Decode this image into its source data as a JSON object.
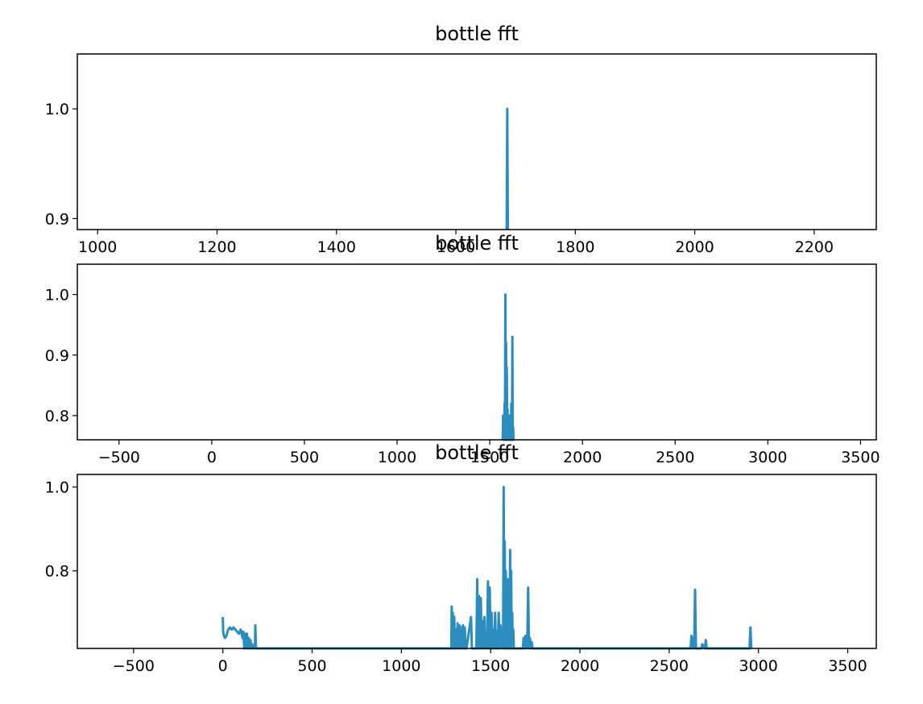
{
  "chart_data": [
    {
      "type": "line",
      "title": "bottle fft",
      "xlabel": "",
      "ylabel": "",
      "xlim": [
        966,
        2304
      ],
      "ylim": [
        0.89,
        1.05
      ],
      "xticks": [
        "1000",
        "1200",
        "1400",
        "1600",
        "1800",
        "2000",
        "2200"
      ],
      "yticks": [
        "0.9",
        "1.0"
      ],
      "grid": false,
      "color": "#2b8cbe",
      "series": [
        {
          "x": [
            1685,
            1686,
            1687
          ],
          "y": [
            0.89,
            1.0,
            0.89
          ]
        }
      ]
    },
    {
      "type": "line",
      "title": "bottle fft",
      "xlabel": "",
      "ylabel": "",
      "xlim": [
        -725,
        3585
      ],
      "ylim": [
        0.76,
        1.05
      ],
      "xticks": [
        "−500",
        "0",
        "500",
        "1000",
        "1500",
        "2000",
        "2500",
        "3000",
        "3500"
      ],
      "yticks": [
        "0.8",
        "0.9",
        "1.0"
      ],
      "grid": false,
      "color": "#2b8cbe",
      "series": [
        {
          "x": [
            1570,
            1572,
            1574,
            1576,
            1578,
            1580,
            1582,
            1584,
            1586,
            1588,
            1590,
            1592,
            1594,
            1596,
            1598,
            1600,
            1602,
            1604,
            1606,
            1608,
            1610,
            1612,
            1614,
            1616,
            1618,
            1620,
            1622,
            1624,
            1626,
            1628,
            1630,
            1632
          ],
          "y": [
            0.76,
            0.8,
            0.76,
            0.8,
            0.76,
            0.82,
            0.76,
            1.0,
            0.76,
            0.92,
            0.76,
            0.88,
            0.76,
            0.81,
            0.76,
            0.8,
            0.76,
            0.78,
            0.76,
            0.8,
            0.76,
            0.76,
            0.76,
            0.82,
            0.76,
            0.76,
            0.93,
            0.76,
            0.78,
            0.76,
            0.76,
            0.76
          ]
        }
      ]
    },
    {
      "type": "line",
      "title": "bottle fft",
      "xlabel": "",
      "ylabel": "",
      "xlim": [
        -815,
        3660
      ],
      "ylim": [
        0.615,
        1.03
      ],
      "xticks": [
        "−500",
        "0",
        "500",
        "1000",
        "1500",
        "2000",
        "2500",
        "3000",
        "3500"
      ],
      "yticks": [
        "0.8",
        "1.0"
      ],
      "grid": false,
      "color": "#2b8cbe",
      "series": [
        {
          "x": [
            0,
            2,
            6,
            12,
            20,
            30,
            40,
            50,
            60,
            70,
            80,
            90,
            100,
            110,
            115,
            120,
            125,
            130,
            135,
            140,
            145,
            150,
            155,
            160,
            165,
            170,
            175,
            180,
            182,
            186,
            190,
            1280,
            1282,
            1284,
            1288,
            1292,
            1296,
            1300,
            1305,
            1310,
            1315,
            1320,
            1325,
            1330,
            1335,
            1340,
            1345,
            1350,
            1355,
            1360,
            1365,
            1390,
            1395,
            1420,
            1425,
            1430,
            1435,
            1440,
            1445,
            1450,
            1455,
            1460,
            1465,
            1470,
            1475,
            1480,
            1485,
            1490,
            1495,
            1500,
            1505,
            1510,
            1515,
            1520,
            1525,
            1530,
            1535,
            1540,
            1545,
            1550,
            1555,
            1565,
            1570,
            1573,
            1576,
            1579,
            1582,
            1585,
            1588,
            1591,
            1594,
            1597,
            1600,
            1603,
            1606,
            1609,
            1612,
            1615,
            1618,
            1621,
            1624,
            1627,
            1630,
            1680,
            1685,
            1690,
            1695,
            1700,
            1705,
            1710,
            1715,
            1720,
            1725,
            1730,
            1735,
            1740,
            2620,
            2625,
            2630,
            2635,
            2640,
            2645,
            2650,
            2655,
            2680,
            2685,
            2700,
            2705,
            2710,
            2950,
            2955,
            2960
          ],
          "y": [
            0.69,
            0.655,
            0.645,
            0.64,
            0.645,
            0.66,
            0.665,
            0.66,
            0.665,
            0.66,
            0.655,
            0.65,
            0.66,
            0.64,
            0.655,
            0.615,
            0.65,
            0.615,
            0.65,
            0.615,
            0.64,
            0.615,
            0.635,
            0.615,
            0.625,
            0.615,
            0.62,
            0.615,
            0.67,
            0.615,
            0.615,
            0.615,
            0.715,
            0.615,
            0.7,
            0.615,
            0.69,
            0.615,
            0.66,
            0.615,
            0.675,
            0.615,
            0.67,
            0.615,
            0.665,
            0.615,
            0.67,
            0.615,
            0.665,
            0.615,
            0.615,
            0.69,
            0.615,
            0.615,
            0.78,
            0.615,
            0.74,
            0.615,
            0.735,
            0.615,
            0.68,
            0.615,
            0.69,
            0.615,
            0.65,
            0.615,
            0.775,
            0.615,
            0.76,
            0.615,
            0.7,
            0.615,
            0.66,
            0.615,
            0.7,
            0.615,
            0.655,
            0.615,
            0.7,
            0.615,
            0.67,
            0.615,
            0.66,
            1.0,
            0.615,
            0.87,
            0.615,
            0.8,
            0.615,
            0.74,
            0.615,
            0.78,
            0.615,
            0.7,
            0.615,
            0.85,
            0.615,
            0.8,
            0.615,
            0.7,
            0.615,
            0.66,
            0.615,
            0.615,
            0.64,
            0.615,
            0.645,
            0.615,
            0.625,
            0.76,
            0.615,
            0.64,
            0.615,
            0.63,
            0.615,
            0.615,
            0.615,
            0.645,
            0.615,
            0.64,
            0.615,
            0.755,
            0.615,
            0.615,
            0.615,
            0.625,
            0.615,
            0.635,
            0.615,
            0.615,
            0.665,
            0.615
          ]
        }
      ]
    }
  ]
}
